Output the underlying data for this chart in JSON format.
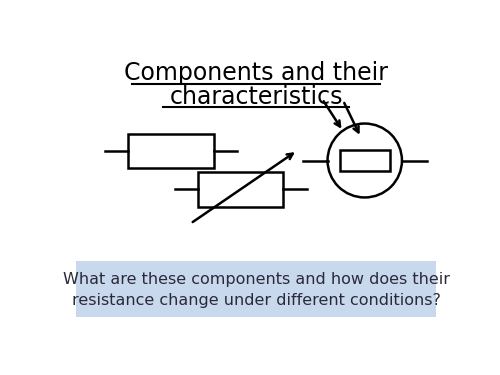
{
  "title_line1": "Components and their",
  "title_line2": "characteristics",
  "bg_color": "#ffffff",
  "box_color": "#000000",
  "text_box_bg": "#c8d8ed",
  "question_text_line1": "What are these components and how does their",
  "question_text_line2": "resistance change under different conditions?",
  "title_fontsize": 17,
  "question_fontsize": 11.5
}
